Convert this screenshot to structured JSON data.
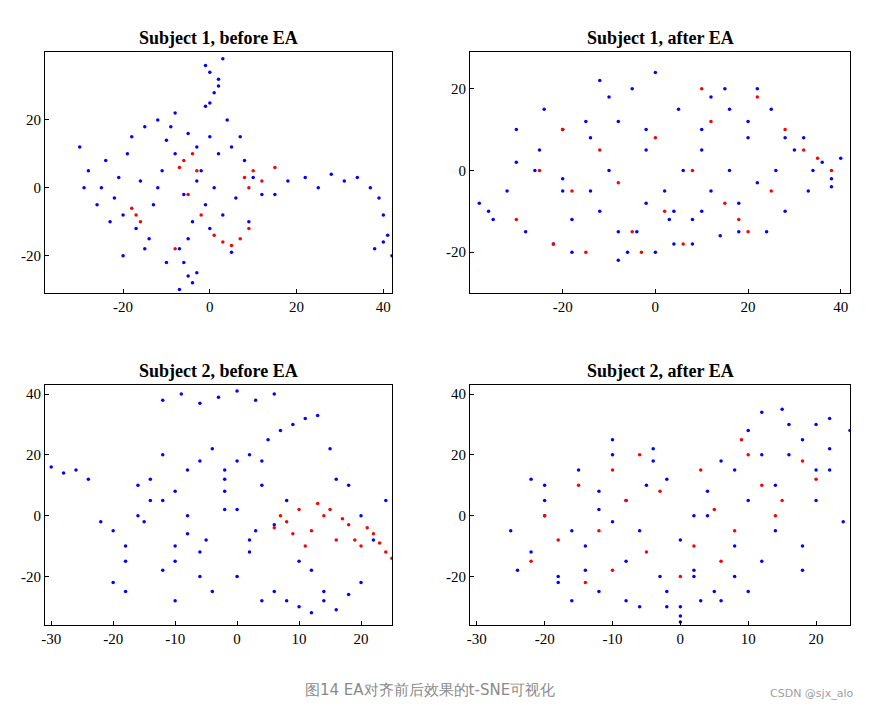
{
  "chart_data": [
    {
      "type": "scatter",
      "title": "Subject 1, before EA",
      "xlim": [
        -38,
        42
      ],
      "ylim": [
        -31,
        40
      ],
      "xticks": [
        -20,
        0,
        20,
        40
      ],
      "yticks": [
        -20,
        0,
        20
      ],
      "series": [
        {
          "color": "#0000ff",
          "marker": "circle",
          "x": [
            -30,
            -28,
            -25,
            -22,
            -20,
            -18,
            -15,
            -12,
            -10,
            -8,
            -5,
            -3,
            0,
            2,
            5,
            8,
            10,
            12,
            -26,
            -24,
            -21,
            -17,
            -14,
            -11,
            -7,
            -4,
            -1,
            3,
            6,
            9,
            -29,
            -23,
            -19,
            -16,
            -13,
            -9,
            -6,
            -2,
            1,
            4,
            7,
            -20,
            -15,
            -10,
            -5,
            0,
            5,
            -12,
            -8,
            -3,
            0,
            1,
            2,
            -1,
            3,
            0,
            2,
            -1,
            -6,
            -5,
            -4,
            -7,
            -3,
            15,
            18,
            22,
            25,
            28,
            31,
            34,
            37,
            39,
            40,
            41,
            38,
            40,
            42
          ],
          "y": [
            12,
            5,
            0,
            -3,
            -8,
            15,
            18,
            20,
            14,
            10,
            16,
            12,
            15,
            10,
            12,
            8,
            3,
            -2,
            -5,
            8,
            3,
            -12,
            -15,
            5,
            -18,
            -10,
            -5,
            -8,
            -3,
            -10,
            0,
            -10,
            10,
            2,
            -5,
            18,
            -2,
            5,
            0,
            20,
            15,
            -20,
            -18,
            -22,
            -15,
            -12,
            -19,
            0,
            22,
            2,
            25,
            28,
            32,
            36,
            38,
            34,
            30,
            24,
            -22,
            -26,
            -28,
            -30,
            -25,
            -2,
            2,
            3,
            0,
            4,
            2,
            3,
            0,
            -3,
            -8,
            -14,
            -18,
            -16,
            -20
          ]
        },
        {
          "color": "#ff0000",
          "marker": "circle",
          "x": [
            -6,
            -4,
            -7,
            -3,
            -5,
            8,
            10,
            12,
            15,
            9,
            3,
            5,
            7,
            9,
            1,
            -17,
            -16,
            -8,
            -18,
            -2
          ],
          "y": [
            8,
            10,
            6,
            5,
            -2,
            3,
            5,
            2,
            6,
            0,
            -16,
            -17,
            -15,
            -12,
            -14,
            -8,
            -10,
            -18,
            -6,
            -8
          ]
        }
      ]
    },
    {
      "type": "scatter",
      "title": "Subject 1, after EA",
      "xlim": [
        -40,
        42
      ],
      "ylim": [
        -30,
        29
      ],
      "xticks": [
        -20,
        0,
        20,
        40
      ],
      "yticks": [
        -20,
        0,
        20
      ],
      "series": [
        {
          "color": "#0000ff",
          "marker": "circle",
          "x": [
            -38,
            -35,
            -32,
            -30,
            -28,
            -25,
            -22,
            -20,
            -18,
            -15,
            -12,
            -10,
            -8,
            -5,
            -2,
            0,
            3,
            5,
            8,
            10,
            12,
            15,
            18,
            20,
            22,
            25,
            28,
            30,
            33,
            36,
            38,
            40,
            -36,
            -30,
            -26,
            -20,
            -14,
            -8,
            -2,
            4,
            10,
            16,
            22,
            28,
            34,
            -24,
            -18,
            -12,
            -6,
            0,
            6,
            12,
            18,
            24,
            -20,
            -14,
            -8,
            -2,
            4,
            10,
            16,
            -10,
            -4,
            2,
            8,
            14,
            20,
            26,
            32,
            38
          ],
          "y": [
            -8,
            -12,
            -5,
            2,
            -15,
            5,
            -18,
            10,
            -20,
            12,
            -10,
            18,
            -15,
            20,
            -8,
            24,
            -12,
            15,
            -18,
            10,
            -5,
            20,
            -15,
            8,
            -3,
            15,
            -10,
            5,
            -5,
            2,
            -2,
            3,
            -10,
            10,
            0,
            -5,
            8,
            -22,
            5,
            -18,
            -10,
            15,
            20,
            8,
            0,
            15,
            -12,
            22,
            -20,
            -20,
            0,
            18,
            -8,
            -15,
            -2,
            -5,
            12,
            10,
            -10,
            5,
            0,
            0,
            -15,
            -5,
            -12,
            -16,
            12,
            0,
            8,
            -4
          ]
        },
        {
          "color": "#ff0000",
          "marker": "circle",
          "x": [
            -30,
            -22,
            -18,
            -12,
            -5,
            2,
            8,
            15,
            22,
            28,
            35,
            -25,
            -15,
            -8,
            0,
            6,
            12,
            18,
            25,
            32,
            -20,
            -3,
            10,
            20,
            38
          ],
          "y": [
            -12,
            -18,
            -5,
            5,
            -15,
            -10,
            0,
            -8,
            18,
            10,
            3,
            0,
            -20,
            -3,
            8,
            -18,
            12,
            -12,
            -5,
            5,
            10,
            -20,
            20,
            -15,
            0
          ]
        }
      ]
    },
    {
      "type": "scatter",
      "title": "Subject 2, before EA",
      "xlim": [
        -31,
        25
      ],
      "ylim": [
        -36,
        43
      ],
      "xticks": [
        -30,
        -20,
        -10,
        0,
        10,
        20
      ],
      "yticks": [
        -20,
        0,
        20,
        40
      ],
      "series": [
        {
          "color": "#0000ff",
          "marker": "circle",
          "x": [
            -30,
            -28,
            -26,
            -24,
            -20,
            -18,
            -15,
            -12,
            -10,
            -8,
            -5,
            -2,
            0,
            3,
            -22,
            -18,
            -14,
            -10,
            -6,
            -2,
            2,
            6,
            -20,
            -16,
            -12,
            -8,
            -4,
            0,
            4,
            8,
            12,
            -18,
            -14,
            -10,
            -6,
            -2,
            2,
            6,
            10,
            14,
            -16,
            -12,
            -8,
            -4,
            0,
            4,
            -10,
            -6,
            -2,
            -12,
            -9,
            -6,
            -3,
            0,
            3,
            6,
            4,
            2,
            5,
            7,
            9,
            11,
            13,
            15,
            8,
            10,
            12,
            14,
            16,
            18,
            20,
            20,
            22,
            24,
            16,
            18
          ],
          "y": [
            16,
            14,
            15,
            12,
            -5,
            -10,
            -2,
            5,
            -15,
            0,
            -8,
            8,
            -20,
            -5,
            -2,
            -15,
            12,
            8,
            -20,
            15,
            -12,
            -25,
            -22,
            0,
            -18,
            15,
            -25,
            18,
            10,
            5,
            -18,
            -25,
            5,
            -28,
            -12,
            2,
            -8,
            -3,
            -15,
            -28,
            10,
            20,
            -6,
            22,
            2,
            -28,
            -10,
            18,
            12,
            38,
            40,
            37,
            39,
            41,
            38,
            40,
            18,
            20,
            25,
            28,
            30,
            32,
            33,
            22,
            -28,
            -30,
            -32,
            -25,
            -31,
            -26,
            -22,
            0,
            -8,
            5,
            12,
            10
          ]
        },
        {
          "color": "#ff0000",
          "marker": "circle",
          "x": [
            8,
            10,
            12,
            14,
            16,
            18,
            20,
            22,
            24,
            25,
            6,
            9,
            11,
            13,
            15,
            17,
            19,
            21,
            23,
            7
          ],
          "y": [
            -2,
            2,
            -5,
            0,
            -8,
            -3,
            -10,
            -6,
            -12,
            -14,
            -4,
            -6,
            -10,
            4,
            2,
            -1,
            -8,
            -4,
            -9,
            0
          ]
        }
      ]
    },
    {
      "type": "scatter",
      "title": "Subject 2, after EA",
      "xlim": [
        -31,
        25
      ],
      "ylim": [
        -36,
        43
      ],
      "xticks": [
        -30,
        -20,
        -10,
        0,
        10,
        20
      ],
      "yticks": [
        -20,
        0,
        20,
        40
      ],
      "series": [
        {
          "color": "#0000ff",
          "marker": "circle",
          "x": [
            -25,
            -22,
            -20,
            -18,
            -15,
            -12,
            -10,
            -8,
            -5,
            -2,
            0,
            2,
            5,
            8,
            10,
            12,
            15,
            18,
            20,
            22,
            25,
            -24,
            -20,
            -16,
            -12,
            -8,
            -4,
            0,
            4,
            8,
            12,
            16,
            20,
            24,
            -22,
            -18,
            -14,
            -10,
            -6,
            -2,
            2,
            6,
            10,
            14,
            18,
            22,
            -20,
            -14,
            -8,
            -2,
            4,
            10,
            16,
            22,
            -16,
            -10,
            -4,
            2,
            8,
            14,
            20,
            -12,
            -6,
            0,
            6,
            12,
            18,
            0,
            3,
            -3
          ],
          "y": [
            -5,
            -12,
            5,
            -20,
            15,
            -25,
            20,
            -28,
            10,
            -30,
            -33,
            -18,
            -25,
            -10,
            5,
            20,
            35,
            25,
            30,
            15,
            28,
            -18,
            10,
            -5,
            8,
            -15,
            22,
            -8,
            0,
            -20,
            -15,
            30,
            5,
            -2,
            12,
            -22,
            -10,
            25,
            -5,
            12,
            -20,
            18,
            28,
            10,
            -10,
            32,
            0,
            -18,
            5,
            -25,
            8,
            -25,
            20,
            22,
            -28,
            -2,
            18,
            0,
            15,
            -5,
            15,
            2,
            -30,
            -30,
            -28,
            34,
            -18,
            -35,
            -28,
            -20
          ]
        },
        {
          "color": "#ff0000",
          "marker": "circle",
          "x": [
            -22,
            -18,
            -15,
            -12,
            -10,
            -8,
            -5,
            -3,
            0,
            3,
            5,
            8,
            10,
            12,
            15,
            18,
            -20,
            -14,
            -6,
            6,
            14,
            20,
            -10,
            2,
            9
          ],
          "y": [
            -15,
            -8,
            10,
            -5,
            -18,
            5,
            -12,
            8,
            -20,
            15,
            2,
            -5,
            20,
            10,
            5,
            18,
            0,
            -22,
            20,
            -15,
            0,
            12,
            15,
            -10,
            25
          ]
        }
      ]
    }
  ],
  "caption": "图14 EA对齐前后效果的t-SNE可视化",
  "watermark": "CSDN @sjx_alo"
}
